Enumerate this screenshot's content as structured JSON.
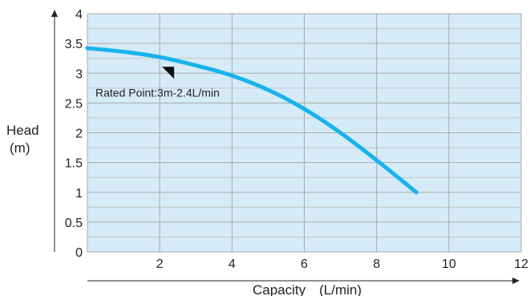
{
  "chart_data": {
    "type": "line",
    "title": "",
    "xlabel": "Capacity　(L/min)",
    "ylabel_line1": "Head",
    "ylabel_line2": "(m)",
    "xlim": [
      0,
      12
    ],
    "ylim": [
      0,
      4
    ],
    "x_ticks": [
      2,
      4,
      6,
      8,
      10,
      12
    ],
    "x_tick_labels": [
      "2",
      "4",
      "6",
      "8",
      "10",
      "12"
    ],
    "y_ticks": [
      0,
      0.5,
      1,
      1.5,
      2,
      2.5,
      3,
      3.5,
      4
    ],
    "y_tick_labels": [
      "0",
      "0.5",
      "1",
      "1.5",
      "2",
      "2.5",
      "3",
      "3.5",
      "4"
    ],
    "grid": true,
    "series": [
      {
        "x": [
          0,
          1,
          2,
          3,
          4,
          5,
          6,
          7,
          8,
          9.1
        ],
        "y": [
          3.42,
          3.36,
          3.27,
          3.13,
          2.96,
          2.72,
          2.4,
          2.0,
          1.54,
          1.0
        ]
      }
    ],
    "annotation": {
      "text": "Rated Point:3m-2.4L/min",
      "x": 2.4,
      "y": 3.0
    },
    "colors": {
      "plot_background": "#d6ebf8",
      "grid_major": "#a9a9a9",
      "grid_minor": "#c4c4c4",
      "line": "#19b3ec",
      "axis": "#222222"
    }
  }
}
